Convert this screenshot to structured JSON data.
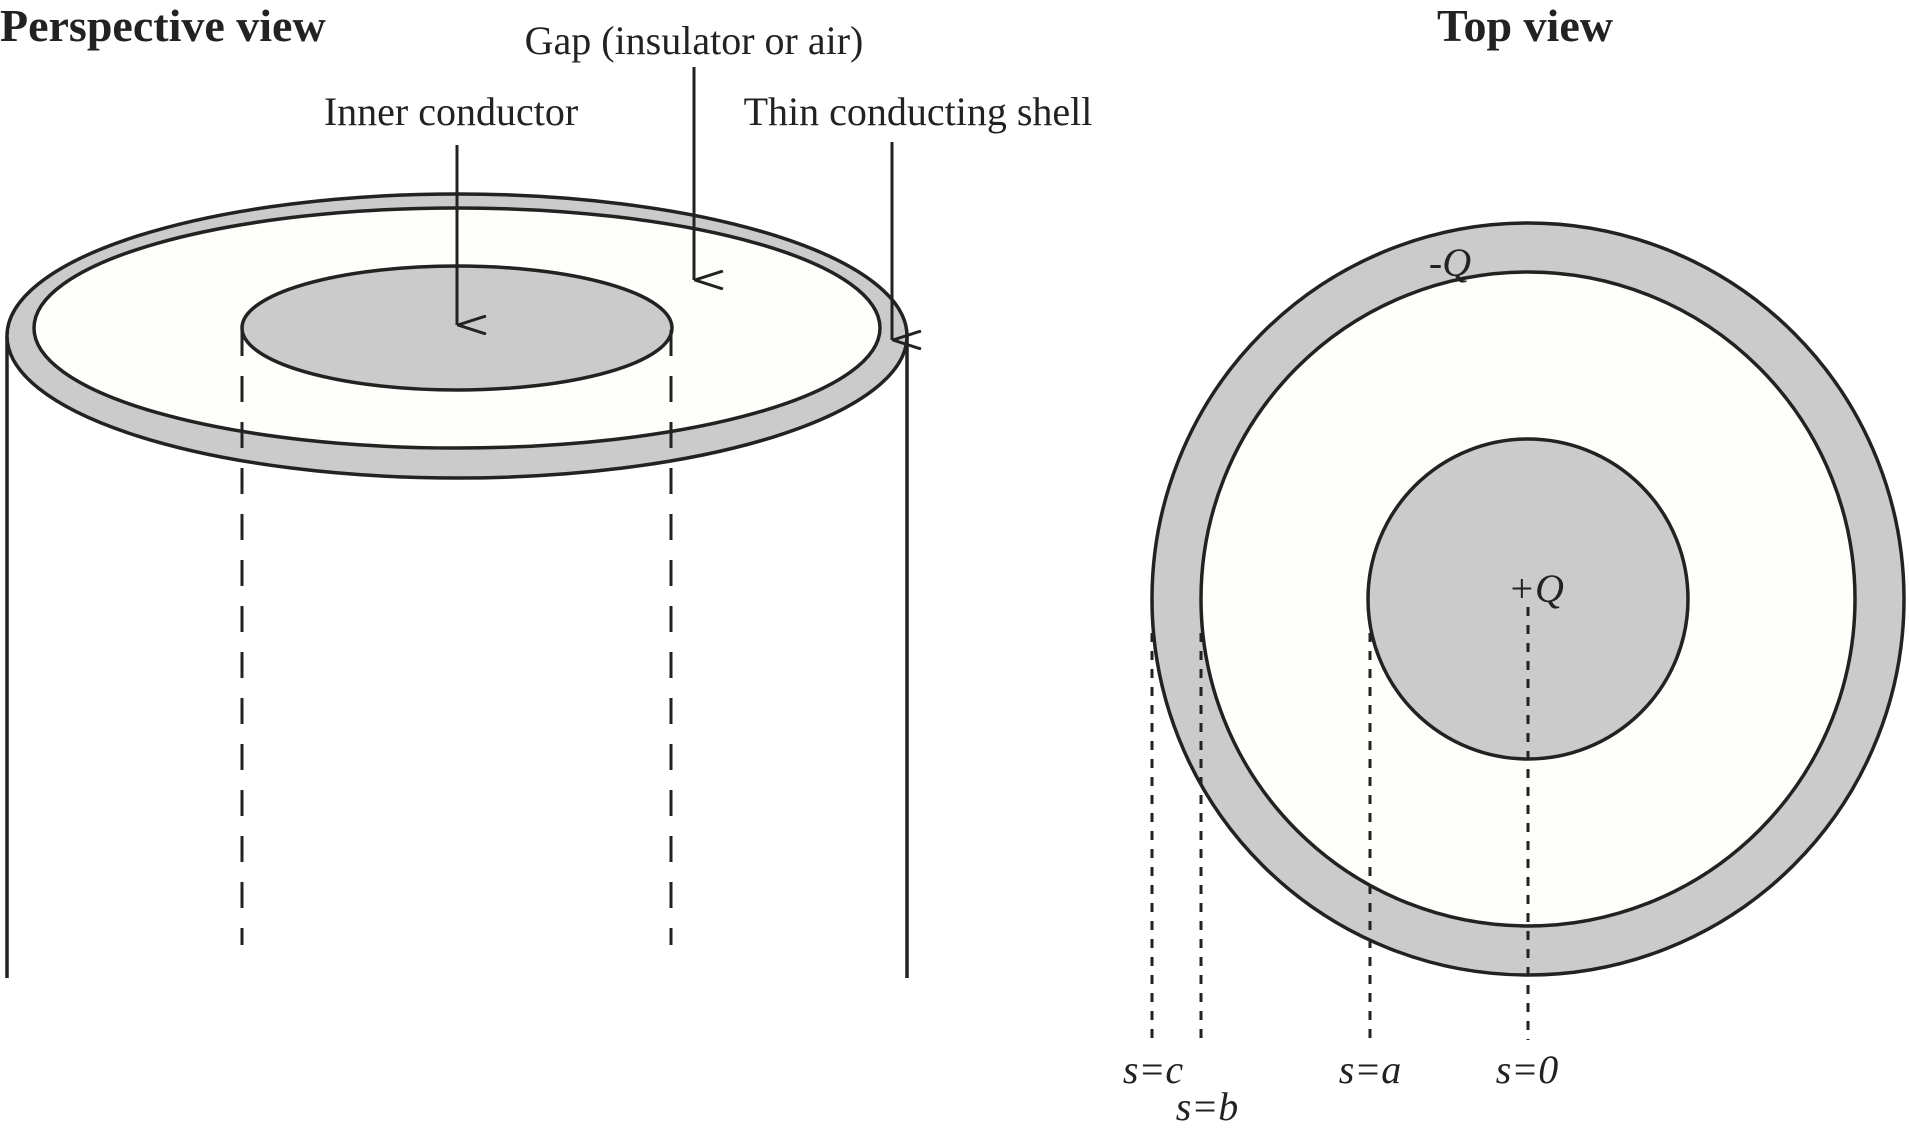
{
  "perspective": {
    "title": "Perspective view",
    "labels": {
      "gap": "Gap (insulator or air)",
      "inner": "Inner conductor",
      "shell": "Thin conducting shell"
    }
  },
  "top": {
    "title": "Top view",
    "charges": {
      "outer": "-Q",
      "inner": "+Q"
    },
    "radii": {
      "c": "s=c",
      "b": "s=b",
      "a": "s=a",
      "zero": "s=0"
    }
  },
  "colors": {
    "conductor_fill": "#cbcbcb",
    "gap_fill": "#fefefb",
    "line": "#222222"
  }
}
